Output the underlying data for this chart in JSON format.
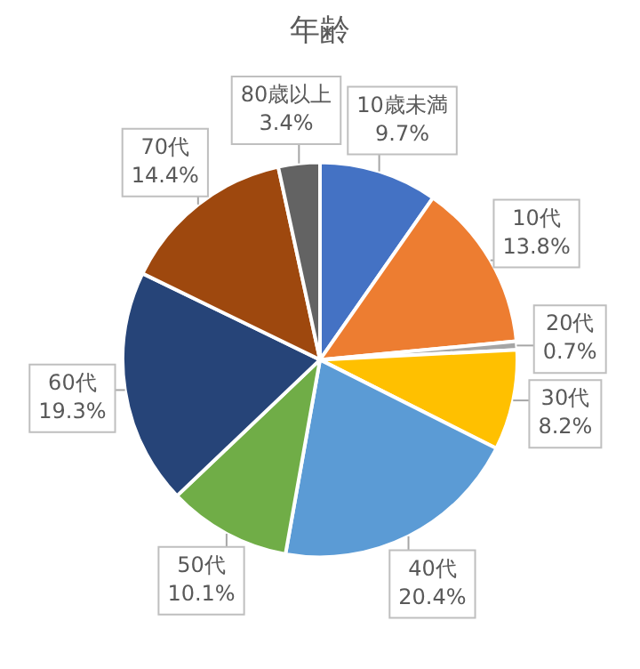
{
  "chart_data": {
    "type": "pie",
    "title": "年齢",
    "categories": [
      "10歳未満",
      "10代",
      "20代",
      "30代",
      "40代",
      "50代",
      "60代",
      "70代",
      "80歳以上"
    ],
    "values": [
      9.7,
      13.8,
      0.7,
      8.2,
      20.4,
      10.1,
      19.3,
      14.4,
      3.4
    ],
    "value_labels": [
      "9.7%",
      "13.8%",
      "0.7%",
      "8.2%",
      "20.4%",
      "10.1%",
      "19.3%",
      "14.4%",
      "3.4%"
    ],
    "colors": [
      "#4472c4",
      "#ed7d31",
      "#a5a5a5",
      "#ffc000",
      "#5b9bd5",
      "#70ad47",
      "#264478",
      "#9e480e",
      "#636363"
    ],
    "legend": false
  }
}
